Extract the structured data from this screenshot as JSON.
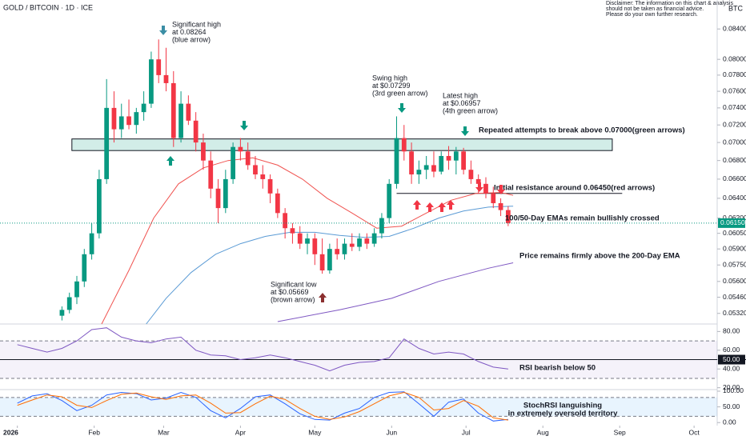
{
  "header": {
    "title": "GOLD / BITCOIN · 1D · ICE",
    "currency": "BTC",
    "disclaimer": [
      "Disclaimer: The information on this chart & analysis",
      "should not be taken as financial advice.",
      "Please do your own further research."
    ]
  },
  "chart_data": [
    {
      "type": "candlestick",
      "log_scale": true,
      "up_color": "#089981",
      "down_color": "#f23645",
      "xlim": [
        -7,
        282
      ],
      "ylim": [
        0.0523,
        0.088
      ],
      "xticks": [
        {
          "value": 0,
          "label": "2026"
        },
        {
          "value": 31,
          "label": "Feb"
        },
        {
          "value": 59,
          "label": "Mar"
        },
        {
          "value": 90,
          "label": "Apr"
        },
        {
          "value": 120,
          "label": "May"
        },
        {
          "value": 151,
          "label": "Jun"
        },
        {
          "value": 181,
          "label": "Jul"
        },
        {
          "value": 212,
          "label": "Aug"
        },
        {
          "value": 243,
          "label": "Sep"
        },
        {
          "value": 273,
          "label": "Oct"
        }
      ],
      "yticks": [
        {
          "value": 0.084,
          "label": "0.08400"
        },
        {
          "value": 0.08,
          "label": "0.08000"
        },
        {
          "value": 0.078,
          "label": "0.07800"
        },
        {
          "value": 0.076,
          "label": "0.07600"
        },
        {
          "value": 0.074,
          "label": "0.07400"
        },
        {
          "value": 0.072,
          "label": "0.07200"
        },
        {
          "value": 0.07,
          "label": "0.07000"
        },
        {
          "value": 0.068,
          "label": "0.06800"
        },
        {
          "value": 0.066,
          "label": "0.06600"
        },
        {
          "value": 0.064,
          "label": "0.06400"
        },
        {
          "value": 0.062,
          "label": "0.06200"
        },
        {
          "value": 0.0605,
          "label": "0.06050"
        },
        {
          "value": 0.059,
          "label": "0.05900"
        },
        {
          "value": 0.0575,
          "label": "0.05750"
        },
        {
          "value": 0.056,
          "label": "0.05600"
        },
        {
          "value": 0.0546,
          "label": "0.05460"
        },
        {
          "value": 0.0532,
          "label": "0.05320"
        }
      ],
      "x": [
        18,
        21,
        24,
        27,
        30,
        33,
        36,
        39,
        42,
        45,
        48,
        51,
        54,
        57,
        60,
        63,
        66,
        69,
        72,
        75,
        78,
        81,
        84,
        87,
        90,
        93,
        96,
        99,
        102,
        105,
        108,
        111,
        114,
        117,
        120,
        123,
        126,
        129,
        132,
        135,
        138,
        141,
        144,
        147,
        150,
        153,
        156,
        159,
        162,
        165,
        168,
        171,
        174,
        177,
        180,
        183,
        186,
        189,
        192,
        195,
        198
      ],
      "open": [
        0.053,
        0.0535,
        0.0546,
        0.056,
        0.0585,
        0.0605,
        0.066,
        0.074,
        0.0715,
        0.073,
        0.072,
        0.0735,
        0.0745,
        0.08,
        0.078,
        0.077,
        0.0705,
        0.0745,
        0.0725,
        0.07,
        0.068,
        0.065,
        0.063,
        0.066,
        0.0695,
        0.069,
        0.0675,
        0.0665,
        0.066,
        0.0645,
        0.0625,
        0.061,
        0.0605,
        0.0595,
        0.06,
        0.0585,
        0.057,
        0.059,
        0.0585,
        0.0595,
        0.0592,
        0.06,
        0.0595,
        0.0605,
        0.062,
        0.0655,
        0.0705,
        0.069,
        0.0665,
        0.067,
        0.0675,
        0.0668,
        0.0685,
        0.068,
        0.069,
        0.067,
        0.066,
        0.0655,
        0.0645,
        0.0635,
        0.0628
      ],
      "high": [
        0.0538,
        0.055,
        0.0565,
        0.059,
        0.0615,
        0.067,
        0.0775,
        0.076,
        0.0745,
        0.075,
        0.074,
        0.076,
        0.081,
        0.0826,
        0.0815,
        0.0785,
        0.076,
        0.0755,
        0.0735,
        0.071,
        0.069,
        0.066,
        0.067,
        0.07,
        0.0705,
        0.07,
        0.0685,
        0.0675,
        0.0665,
        0.065,
        0.063,
        0.0615,
        0.0612,
        0.0605,
        0.0605,
        0.06,
        0.0595,
        0.06,
        0.06,
        0.0605,
        0.0605,
        0.0605,
        0.061,
        0.0625,
        0.066,
        0.073,
        0.072,
        0.07,
        0.068,
        0.0685,
        0.069,
        0.069,
        0.0696,
        0.0695,
        0.0694,
        0.068,
        0.0665,
        0.0662,
        0.0652,
        0.064,
        0.0632
      ],
      "low": [
        0.0526,
        0.0532,
        0.054,
        0.0555,
        0.058,
        0.06,
        0.0655,
        0.07,
        0.0705,
        0.0715,
        0.071,
        0.0725,
        0.074,
        0.077,
        0.076,
        0.0695,
        0.07,
        0.072,
        0.069,
        0.067,
        0.064,
        0.0615,
        0.0625,
        0.0655,
        0.068,
        0.067,
        0.066,
        0.065,
        0.0635,
        0.062,
        0.06,
        0.0595,
        0.059,
        0.0585,
        0.0575,
        0.0567,
        0.0567,
        0.058,
        0.058,
        0.0588,
        0.0588,
        0.059,
        0.0592,
        0.06,
        0.0615,
        0.065,
        0.068,
        0.0655,
        0.0655,
        0.066,
        0.0662,
        0.0665,
        0.067,
        0.0665,
        0.0665,
        0.0655,
        0.0645,
        0.064,
        0.063,
        0.0622,
        0.0612
      ],
      "close": [
        0.0535,
        0.0546,
        0.056,
        0.0585,
        0.0605,
        0.066,
        0.074,
        0.0715,
        0.073,
        0.072,
        0.0735,
        0.0745,
        0.08,
        0.078,
        0.077,
        0.0705,
        0.0745,
        0.0725,
        0.07,
        0.068,
        0.065,
        0.063,
        0.066,
        0.0695,
        0.069,
        0.0675,
        0.0665,
        0.066,
        0.0645,
        0.0625,
        0.061,
        0.0605,
        0.0595,
        0.06,
        0.0585,
        0.057,
        0.059,
        0.0585,
        0.0595,
        0.0592,
        0.06,
        0.0595,
        0.0605,
        0.062,
        0.0655,
        0.0705,
        0.069,
        0.0665,
        0.067,
        0.0675,
        0.0668,
        0.0685,
        0.068,
        0.069,
        0.067,
        0.066,
        0.0655,
        0.0645,
        0.0635,
        0.0628,
        0.0615
      ],
      "lines": [
        {
          "color": "#f05350",
          "x": [
            34,
            45,
            55,
            65,
            75,
            85,
            95,
            105,
            115,
            125,
            135,
            145,
            155,
            165,
            175,
            185,
            195,
            200
          ],
          "values": [
            0.0523,
            0.057,
            0.062,
            0.0655,
            0.0672,
            0.068,
            0.0683,
            0.0675,
            0.066,
            0.064,
            0.0625,
            0.061,
            0.0612,
            0.0625,
            0.0638,
            0.0645,
            0.0646,
            0.0643
          ]
        },
        {
          "color": "#5b9bd5",
          "x": [
            52,
            60,
            70,
            80,
            90,
            100,
            110,
            120,
            130,
            140,
            150,
            160,
            170,
            180,
            190,
            200
          ],
          "values": [
            0.0523,
            0.0545,
            0.0568,
            0.0585,
            0.0595,
            0.0602,
            0.0606,
            0.0606,
            0.0603,
            0.0601,
            0.0602,
            0.061,
            0.062,
            0.0627,
            0.0631,
            0.0632
          ]
        },
        {
          "color": "#7e57c2",
          "x": [
            105,
            130,
            151,
            170,
            190,
            200
          ],
          "values": [
            0.0525,
            0.0535,
            0.0545,
            0.056,
            0.0572,
            0.0577
          ]
        }
      ],
      "zone": {
        "range": [
          0.0691,
          0.0704
        ],
        "x": [
          22,
          240
        ]
      },
      "resistance": {
        "value": 0.0645,
        "x": [
          153,
          244
        ]
      },
      "last_price": {
        "value": 0.0615,
        "label": "0.06150"
      },
      "annotations": [
        {
          "lines": [
            "Significant high",
            "at 0.08264",
            "(blue arrow)"
          ]
        },
        {
          "lines": [
            "Swing high",
            "at $0.07299",
            "(3rd green arrow)"
          ]
        },
        {
          "lines": [
            "Latest high",
            "at $0.06957",
            "(4th green arrow)"
          ]
        },
        {
          "lines": [
            "Repeated attempts to break above 0.07000(green arrows)"
          ]
        },
        {
          "lines": [
            "Initial resistance around 0.06450(red arrows)"
          ]
        },
        {
          "lines": [
            "100/50-Day EMAs remain bullishly crossed"
          ]
        },
        {
          "lines": [
            "Price remains firmly above the 200-Day EMA"
          ]
        },
        {
          "lines": [
            "Significant low",
            "at $0.05669",
            "(brown arrow)"
          ]
        }
      ]
    },
    {
      "type": "line",
      "ylim": [
        18,
        88
      ],
      "yticks": [
        {
          "value": 80,
          "label": "80.00"
        },
        {
          "value": 60,
          "label": "60.00"
        },
        {
          "value": 50,
          "label": "50.00"
        },
        {
          "value": 40,
          "label": "40.00"
        },
        {
          "value": 20,
          "label": "20.00"
        }
      ],
      "band": [
        30,
        70
      ],
      "midline": 50,
      "series": [
        {
          "color": "#7e57c2",
          "x": [
            0,
            6,
            12,
            18,
            24,
            30,
            36,
            42,
            48,
            54,
            60,
            66,
            72,
            78,
            84,
            90,
            96,
            102,
            108,
            114,
            120,
            126,
            132,
            138,
            144,
            150,
            156,
            162,
            168,
            174,
            180,
            186,
            192,
            198
          ],
          "values": [
            66,
            62,
            58,
            62,
            70,
            82,
            84,
            74,
            70,
            68,
            72,
            74,
            60,
            55,
            54,
            50,
            52,
            55,
            52,
            48,
            44,
            38,
            44,
            47,
            48,
            52,
            72,
            62,
            56,
            58,
            56,
            48,
            42,
            40
          ]
        }
      ],
      "annotations": [
        {
          "lines": [
            "RSI bearish below 50"
          ]
        }
      ]
    },
    {
      "type": "line",
      "ylim": [
        -30,
        105
      ],
      "yticks": [
        {
          "value": 100,
          "label": "100.00"
        },
        {
          "value": 50,
          "label": "50.00"
        },
        {
          "value": 0,
          "label": "0.00"
        }
      ],
      "band": [
        20,
        80
      ],
      "series": [
        {
          "color": "#2962ff",
          "x": [
            0,
            6,
            12,
            18,
            24,
            30,
            36,
            42,
            48,
            54,
            60,
            66,
            72,
            78,
            84,
            90,
            96,
            102,
            108,
            114,
            120,
            126,
            132,
            138,
            144,
            150,
            156,
            162,
            168,
            174,
            180,
            186,
            192,
            198
          ],
          "values": [
            62,
            85,
            92,
            70,
            38,
            55,
            88,
            96,
            92,
            72,
            78,
            96,
            80,
            38,
            15,
            45,
            82,
            88,
            60,
            28,
            10,
            8,
            30,
            45,
            80,
            96,
            98,
            60,
            20,
            65,
            75,
            30,
            5,
            10
          ]
        },
        {
          "color": "#ff6d00",
          "x": [
            0,
            6,
            12,
            18,
            24,
            30,
            36,
            42,
            48,
            54,
            60,
            66,
            72,
            78,
            84,
            90,
            96,
            102,
            108,
            114,
            120,
            126,
            132,
            138,
            144,
            150,
            156,
            162,
            168,
            174,
            180,
            186,
            192,
            198
          ],
          "values": [
            55,
            72,
            88,
            82,
            55,
            48,
            70,
            90,
            94,
            82,
            74,
            85,
            88,
            62,
            30,
            32,
            60,
            84,
            74,
            45,
            20,
            10,
            18,
            35,
            60,
            85,
            96,
            80,
            40,
            45,
            70,
            52,
            15,
            8
          ]
        }
      ],
      "annotations": [
        {
          "lines": [
            "StochRSI languishing",
            "in extremely oversold territory"
          ]
        }
      ]
    }
  ]
}
